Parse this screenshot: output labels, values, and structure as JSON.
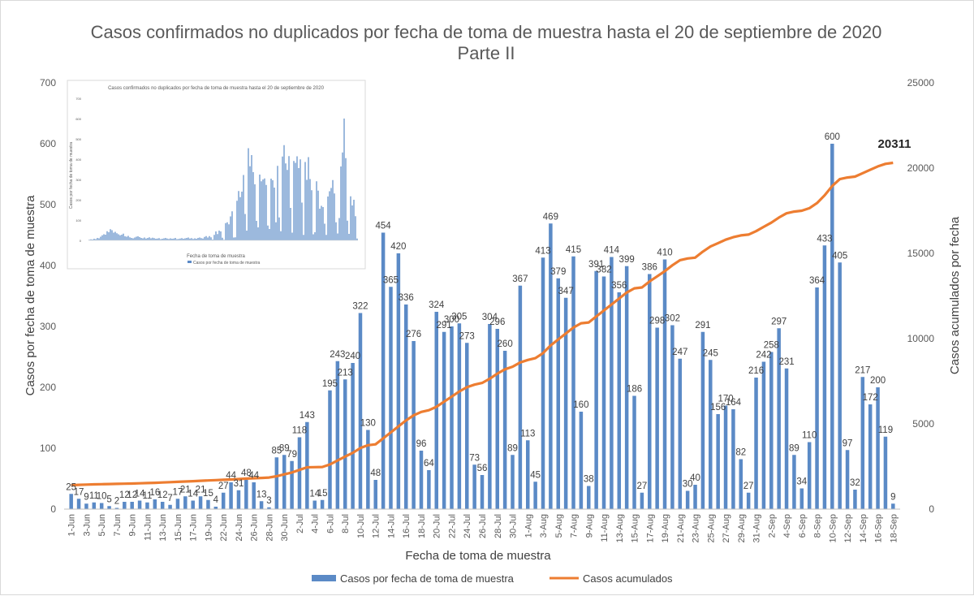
{
  "title_line1": "Casos confirmados no duplicados por fecha de toma de muestra hasta el 20 de septiembre de 2020",
  "title_line2": "Parte II",
  "chart_data": {
    "type": "bar+line",
    "title": "Casos confirmados no duplicados por fecha de toma de muestra hasta el 20 de septiembre de 2020 Parte II",
    "xlabel": "Fecha de toma de muestra",
    "ylabel_left": "Casos por fecha de toma de muestra",
    "ylabel_right": "Casos acumulados por fecha",
    "ylim_left": [
      0,
      700
    ],
    "yticks_left": [
      "0",
      "100",
      "200",
      "300",
      "400",
      "500",
      "600",
      "700"
    ],
    "ylim_right": [
      0,
      25000
    ],
    "yticks_right": [
      "0",
      "5000",
      "10000",
      "15000",
      "20000",
      "25000"
    ],
    "x_tick_labels": [
      "1-Jun",
      "3-Jun",
      "5-Jun",
      "7-Jun",
      "9-Jun",
      "11-Jun",
      "13-Jun",
      "15-Jun",
      "17-Jun",
      "19-Jun",
      "22-Jun",
      "24-Jun",
      "26-Jun",
      "28-Jun",
      "30-Jun",
      "2-Jul",
      "4-Jul",
      "6-Jul",
      "8-Jul",
      "10-Jul",
      "12-Jul",
      "14-Jul",
      "16-Jul",
      "18-Jul",
      "20-Jul",
      "22-Jul",
      "24-Jul",
      "26-Jul",
      "28-Jul",
      "30-Jul",
      "1-Aug",
      "3-Aug",
      "5-Aug",
      "7-Aug",
      "9-Aug",
      "11-Aug",
      "13-Aug",
      "15-Aug",
      "17-Aug",
      "19-Aug",
      "21-Aug",
      "23-Aug",
      "25-Aug",
      "27-Aug",
      "29-Aug",
      "31-Aug",
      "2-Sep",
      "4-Sep",
      "6-Sep",
      "8-Sep",
      "10-Sep",
      "12-Sep",
      "14-Sep",
      "16-Sep",
      "18-Sep"
    ],
    "series": [
      {
        "name": "Casos por fecha de toma de muestra",
        "kind": "bar",
        "color": "#5b8ac6",
        "values": [
          25,
          17,
          9,
          11,
          10,
          5,
          2,
          12,
          12,
          14,
          11,
          16,
          12,
          7,
          17,
          21,
          14,
          21,
          15,
          4,
          27,
          44,
          31,
          48,
          44,
          13,
          3,
          85,
          89,
          79,
          118,
          143,
          14,
          15,
          195,
          243,
          213,
          240,
          322,
          130,
          48,
          454,
          365,
          420,
          336,
          276,
          96,
          64,
          324,
          291,
          300,
          305,
          273,
          73,
          56,
          304,
          296,
          260,
          89,
          367,
          113,
          45,
          413,
          469,
          379,
          347,
          415,
          160,
          38,
          391,
          382,
          414,
          356,
          399,
          186,
          27,
          386,
          298,
          410,
          302,
          247,
          30,
          40,
          291,
          245,
          156,
          170,
          164,
          82,
          27,
          216,
          242,
          258,
          297,
          231,
          89,
          34,
          110,
          364,
          433,
          600,
          405,
          97,
          32,
          217,
          172,
          200,
          119,
          9
        ]
      },
      {
        "name": "Casos acumulados",
        "kind": "line",
        "color": "#ed7d31",
        "final_label": "20311",
        "values": [
          1400,
          1425,
          1440,
          1450,
          1460,
          1470,
          1480,
          1490,
          1500,
          1515,
          1530,
          1545,
          1560,
          1580,
          1600,
          1620,
          1640,
          1660,
          1680,
          1700,
          1720,
          1740,
          1760,
          1790,
          1810,
          1830,
          1850,
          1930,
          2040,
          2150,
          2300,
          2450,
          2460,
          2470,
          2620,
          2850,
          3080,
          3300,
          3580,
          3750,
          3800,
          4150,
          4500,
          4850,
          5200,
          5500,
          5700,
          5800,
          6000,
          6300,
          6600,
          6900,
          7150,
          7300,
          7400,
          7650,
          7950,
          8200,
          8350,
          8600,
          8750,
          8850,
          9150,
          9600,
          9950,
          10300,
          10650,
          10900,
          10950,
          11300,
          11650,
          12000,
          12350,
          12700,
          12950,
          13000,
          13350,
          13650,
          13950,
          14300,
          14600,
          14700,
          14750,
          15100,
          15400,
          15600,
          15800,
          15950,
          16050,
          16100,
          16300,
          16550,
          16800,
          17100,
          17350,
          17450,
          17500,
          17650,
          17950,
          18400,
          18950,
          19350,
          19450,
          19500,
          19700,
          19900,
          20100,
          20250,
          20311
        ]
      }
    ],
    "legend": [
      "Casos por fecha de toma de muestra",
      "Casos acumulados"
    ],
    "legend_position": "bottom"
  },
  "inset": {
    "title": "Casos confirmados no duplicados por fecha de toma de muestra hasta el 20 de septiembre de 2020",
    "xlabel": "Fecha de toma de muestra",
    "ylabel": "Casos por fecha de toma de muestra",
    "legend": "Casos por fecha de toma de muestra",
    "yticks": [
      "700",
      "600",
      "500",
      "400",
      "300",
      "200",
      "100",
      "0"
    ],
    "values": [
      3,
      5,
      4,
      8,
      6,
      12,
      10,
      18,
      25,
      30,
      28,
      45,
      40,
      55,
      50,
      38,
      42,
      35,
      30,
      25,
      28,
      33,
      20,
      18,
      22,
      15,
      12,
      10,
      14,
      18,
      20,
      16,
      12,
      10,
      14,
      9,
      12,
      15,
      10,
      13,
      11,
      8,
      9,
      11,
      6,
      8,
      10,
      12,
      9,
      7,
      10,
      8,
      9,
      12,
      6,
      7,
      9,
      11,
      8,
      10,
      12,
      14,
      9,
      11,
      7,
      10,
      8,
      12,
      14,
      11,
      9,
      17,
      21,
      14,
      21,
      15,
      4,
      27,
      44,
      31,
      48,
      44,
      13,
      3,
      85,
      89,
      79,
      118,
      143,
      14,
      15,
      195,
      243,
      213,
      240,
      322,
      130,
      48,
      454,
      365,
      420,
      336,
      276,
      96,
      64,
      324,
      291,
      300,
      305,
      273,
      73,
      56,
      304,
      296,
      260,
      89,
      367,
      113,
      45,
      413,
      469,
      379,
      347,
      415,
      160,
      38,
      391,
      382,
      414,
      356,
      399,
      186,
      27,
      386,
      298,
      410,
      302,
      247,
      30,
      40,
      291,
      245,
      156,
      170,
      164,
      82,
      27,
      216,
      242,
      258,
      297,
      231,
      89,
      34,
      110,
      364,
      433,
      600,
      405,
      97,
      32,
      217,
      172,
      200,
      119,
      9
    ]
  }
}
